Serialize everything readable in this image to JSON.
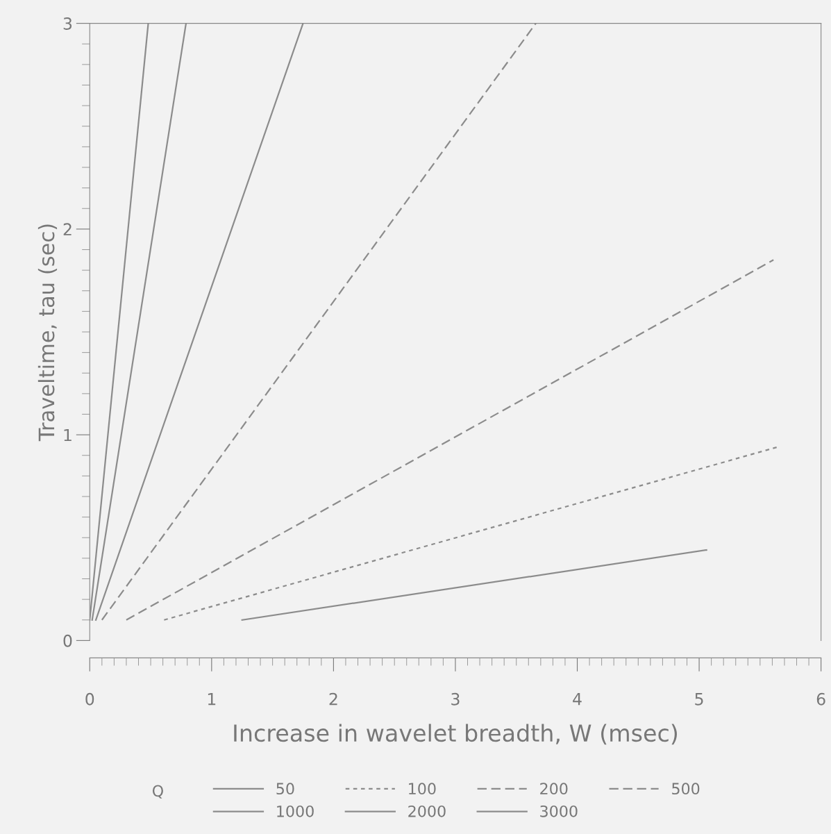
{
  "chart_data": {
    "type": "line",
    "xlabel": "Increase in wavelet breadth, W (msec)",
    "ylabel": "Traveltime, tau (sec)",
    "legend_title": "Q",
    "legend": "bottom",
    "xlim": [
      0,
      6
    ],
    "ylim": [
      0,
      3
    ],
    "xticks": [
      0,
      1,
      2,
      3,
      4,
      5,
      6
    ],
    "yticks": [
      0,
      1,
      2,
      3
    ],
    "series": [
      {
        "name": "50",
        "color": "#8c8c8c",
        "line_style": "solid",
        "x": [
          1.25,
          5.06
        ],
        "values": [
          0.1,
          0.44
        ]
      },
      {
        "name": "100",
        "color": "#8c8c8c",
        "line_style": "dotted",
        "x": [
          0.61,
          5.64
        ],
        "values": [
          0.1,
          0.94
        ]
      },
      {
        "name": "200",
        "color": "#8c8c8c",
        "line_style": "dashed",
        "x": [
          0.3,
          5.61
        ],
        "values": [
          0.1,
          1.85
        ]
      },
      {
        "name": "500",
        "color": "#8c8c8c",
        "line_style": "dashed",
        "x": [
          0.1,
          3.66
        ],
        "values": [
          0.1,
          3.0
        ]
      },
      {
        "name": "1000",
        "color": "#8c8c8c",
        "line_style": "solid",
        "x": [
          0.05,
          1.75
        ],
        "values": [
          0.1,
          3.0
        ]
      },
      {
        "name": "2000",
        "color": "#8c8c8c",
        "line_style": "solid",
        "x": [
          0.02,
          0.79
        ],
        "values": [
          0.1,
          3.0
        ]
      },
      {
        "name": "3000",
        "color": "#8c8c8c",
        "line_style": "solid",
        "x": [
          0.0,
          0.48
        ],
        "values": [
          0.1,
          3.0
        ]
      }
    ]
  }
}
